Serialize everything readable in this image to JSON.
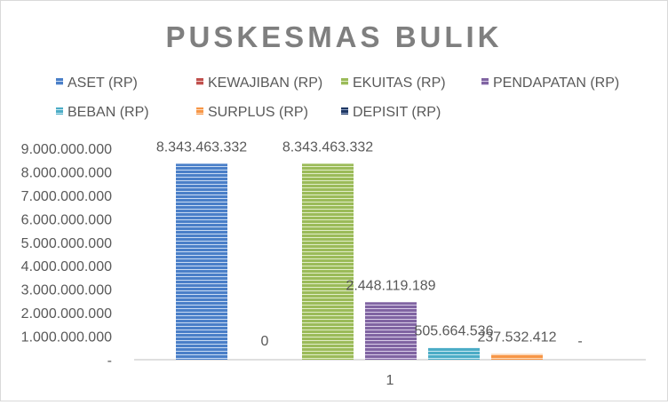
{
  "chart_data": {
    "type": "bar",
    "title": "PUSKESMAS BULIK",
    "categories": [
      "1"
    ],
    "series": [
      {
        "name": "ASET (RP)",
        "values": [
          8343463332
        ],
        "label": "8.343.463.332",
        "color": "#4a7fc8",
        "stripe": "#c9dbf3"
      },
      {
        "name": "KEWAJIBAN (RP)",
        "values": [
          0
        ],
        "label": "0",
        "color": "#c0504d",
        "stripe": "#f0c8c6"
      },
      {
        "name": "EKUITAS (RP)",
        "values": [
          8343463332
        ],
        "label": "8.343.463.332",
        "color": "#9bbb59",
        "stripe": "#e1edc6"
      },
      {
        "name": "PENDAPATAN (RP)",
        "values": [
          2448119189
        ],
        "label": "2.448.119.189",
        "color": "#8064a2",
        "stripe": "#d9cde8"
      },
      {
        "name": "BEBAN (RP)",
        "values": [
          505664536
        ],
        "label": "505.664.536",
        "color": "#4bacc6",
        "stripe": "#c8e8f1"
      },
      {
        "name": "SURPLUS (RP)",
        "values": [
          237532412
        ],
        "label": "237.532.412",
        "color": "#f79646",
        "stripe": "#fcd9ba"
      },
      {
        "name": "DEPISIT (RP)",
        "values": [
          0
        ],
        "label": "-",
        "color": "#1f3864",
        "stripe": "#8da0c4"
      }
    ],
    "ylim": [
      0,
      9000000000
    ],
    "y_ticks": [
      {
        "value": 0,
        "label": "-"
      },
      {
        "value": 1000000000,
        "label": "1.000.000.000"
      },
      {
        "value": 2000000000,
        "label": "2.000.000.000"
      },
      {
        "value": 3000000000,
        "label": "3.000.000.000"
      },
      {
        "value": 4000000000,
        "label": "4.000.000.000"
      },
      {
        "value": 5000000000,
        "label": "5.000.000.000"
      },
      {
        "value": 6000000000,
        "label": "6.000.000.000"
      },
      {
        "value": 7000000000,
        "label": "7.000.000.000"
      },
      {
        "value": 8000000000,
        "label": "8.000.000.000"
      },
      {
        "value": 9000000000,
        "label": "9.000.000.000"
      }
    ],
    "grid": false,
    "legend": "top",
    "colors": {
      "title": "#7f7f7f",
      "text": "#595959",
      "axis": "#bfbfbf"
    }
  }
}
